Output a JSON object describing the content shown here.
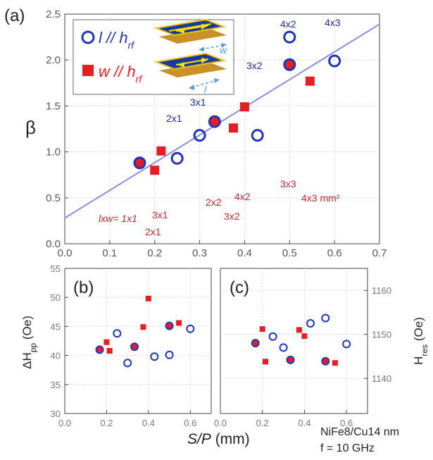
{
  "colors": {
    "blue": "#1f35b4",
    "red": "#e31e24",
    "fit": "#8a8fe0",
    "grid": "#d9d9d9"
  },
  "chart_data": [
    {
      "panel": "(a)",
      "type": "scatter",
      "ylabel": "β",
      "xlim": [
        0.0,
        0.7
      ],
      "ylim": [
        0.0,
        2.5
      ],
      "xticks": [
        "0.0",
        "0.1",
        "0.2",
        "0.3",
        "0.4",
        "0.5",
        "0.6",
        "0.7"
      ],
      "yticks": [
        "0.0",
        "0.5",
        "1.0",
        "1.5",
        "2.0",
        "2.5"
      ],
      "grid": true,
      "legend_position": "top-left",
      "series": [
        {
          "name": "l // h_rf",
          "marker": "open-circle",
          "x": [
            0.1667,
            0.25,
            0.3,
            0.3333,
            0.4286,
            0.5,
            0.5,
            0.6
          ],
          "y": [
            0.88,
            0.93,
            1.18,
            1.33,
            1.18,
            2.25,
            1.95,
            1.99
          ]
        },
        {
          "name": "w // h_rf",
          "marker": "filled-square",
          "x": [
            0.1667,
            0.2,
            0.2143,
            0.3333,
            0.375,
            0.4,
            0.5,
            0.5455
          ],
          "y": [
            0.88,
            0.8,
            1.01,
            1.33,
            1.26,
            1.49,
            1.95,
            1.77
          ]
        }
      ],
      "fit_line": {
        "x": [
          0.0,
          0.7
        ],
        "y": [
          0.28,
          2.39
        ]
      },
      "annotations_blue": [
        "4x2",
        "4x3",
        "3x2",
        "3x1",
        "2x1"
      ],
      "annotations_red": [
        "3x3",
        "4x3 mm²",
        "2x2",
        "4x2",
        "3x2",
        "3x1",
        "2x1"
      ],
      "size_label_prefix": "lxw= 1x1"
    },
    {
      "panel": "(b)",
      "type": "scatter",
      "ylabel": "ΔH_pp (Oe)",
      "xlim": [
        0.0,
        0.7
      ],
      "ylim": [
        30,
        55
      ],
      "xticks": [
        "0.0",
        "0.2",
        "0.4",
        "0.6"
      ],
      "yticks": [
        "30",
        "35",
        "40",
        "45",
        "50",
        "55"
      ],
      "grid": true,
      "series": [
        {
          "name": "l // h_rf",
          "marker": "open-circle",
          "x": [
            0.1667,
            0.25,
            0.3,
            0.3333,
            0.4286,
            0.5,
            0.5,
            0.6
          ],
          "y": [
            41.0,
            43.8,
            38.7,
            41.5,
            39.8,
            40.1,
            45.1,
            44.6
          ]
        },
        {
          "name": "w // h_rf",
          "marker": "filled-square",
          "x": [
            0.1667,
            0.2,
            0.2143,
            0.3333,
            0.375,
            0.4,
            0.5,
            0.5455
          ],
          "y": [
            41.0,
            42.3,
            40.8,
            41.5,
            44.9,
            49.8,
            45.1,
            45.6
          ]
        }
      ]
    },
    {
      "panel": "(c)",
      "type": "scatter",
      "ylabel": "H_res (Oe)",
      "xlim": [
        0.0,
        0.7
      ],
      "ylim": [
        1132,
        1165
      ],
      "xticks": [
        "0.0",
        "0.2",
        "0.4",
        "0.6"
      ],
      "yticks": [
        "1140",
        "1150",
        "1160"
      ],
      "grid": true,
      "series": [
        {
          "name": "l // h_rf",
          "marker": "open-circle",
          "x": [
            0.1667,
            0.25,
            0.3,
            0.3333,
            0.4286,
            0.5,
            0.5,
            0.6
          ],
          "y": [
            1148.0,
            1149.5,
            1147.0,
            1144.2,
            1152.5,
            1153.7,
            1143.9,
            1147.8
          ]
        },
        {
          "name": "w // h_rf",
          "marker": "filled-square",
          "x": [
            0.1667,
            0.2,
            0.2143,
            0.3333,
            0.375,
            0.4,
            0.5,
            0.5455
          ],
          "y": [
            1148.0,
            1151.2,
            1143.8,
            1144.2,
            1151.0,
            1149.6,
            1143.9,
            1143.5
          ]
        }
      ]
    }
  ],
  "xlabel": "S/P (mm)",
  "sample_note": "NiFe8/Cu14 nm",
  "freq_note": "f = 10 GHz",
  "inset_labels": {
    "w": "w",
    "l": "l"
  }
}
